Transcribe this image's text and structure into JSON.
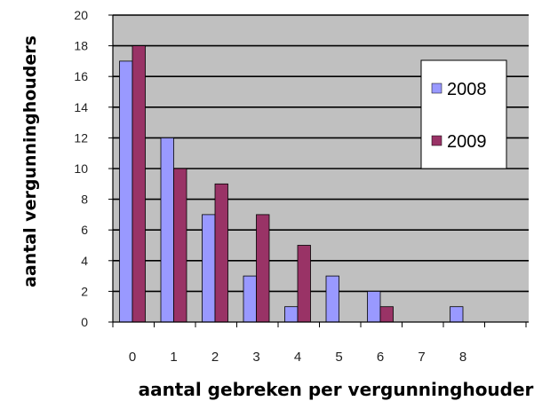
{
  "chart_data": {
    "type": "bar",
    "categories": [
      "0",
      "1",
      "2",
      "3",
      "4",
      "5",
      "6",
      "7",
      "8"
    ],
    "series": [
      {
        "name": "2008",
        "values": [
          17,
          12,
          7,
          3,
          1,
          3,
          2,
          0,
          1
        ],
        "color": "#9999ff"
      },
      {
        "name": "2009",
        "values": [
          18,
          10,
          9,
          7,
          5,
          0,
          1,
          0,
          0
        ],
        "color": "#993366"
      }
    ],
    "xlabel": "aantal gebreken per vergunninghouder",
    "ylabel": "aantal vergunninghouders",
    "ylim": [
      0,
      20
    ],
    "yticks": [
      "0",
      "2",
      "4",
      "6",
      "8",
      "10",
      "12",
      "14",
      "16",
      "18",
      "20"
    ],
    "grid": true,
    "legend_position": "top-right",
    "plot_background": "#c0c0c0"
  }
}
